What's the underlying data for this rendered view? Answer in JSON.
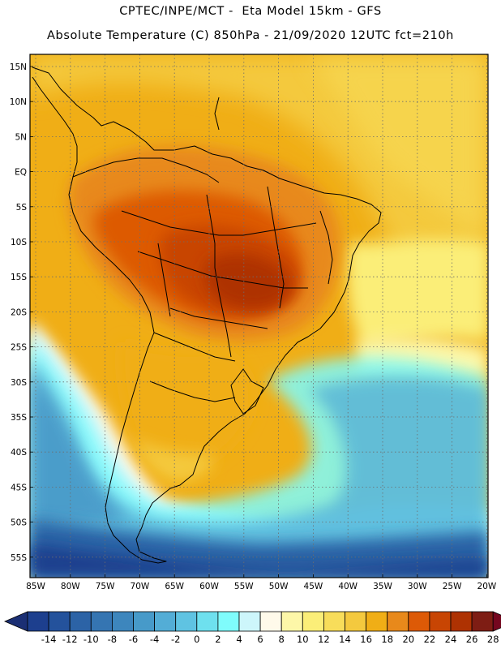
{
  "header": {
    "title_line1": "CPTEC/INPE/MCT -  Eta Model 15km - GFS",
    "title_line2": "Absolute Temperature (C) 850hPa - 21/09/2020 12UTC fct=210h"
  },
  "map": {
    "lat_labels": [
      "15N",
      "10N",
      "5N",
      "EQ",
      "5S",
      "10S",
      "15S",
      "20S",
      "25S",
      "30S",
      "35S",
      "40S",
      "45S",
      "50S",
      "55S"
    ],
    "lon_labels": [
      "85W",
      "80W",
      "75W",
      "70W",
      "65W",
      "60W",
      "55W",
      "50W",
      "45W",
      "40W",
      "35W",
      "30W",
      "25W",
      "20W"
    ]
  },
  "colorbar": {
    "labels": [
      "-14",
      "-12",
      "-10",
      "-8",
      "-6",
      "-4",
      "-2",
      "0",
      "2",
      "4",
      "6",
      "8",
      "10",
      "12",
      "14",
      "16",
      "18",
      "20",
      "22",
      "24",
      "26",
      "28"
    ],
    "colors": [
      "#1d3f8e",
      "#24529c",
      "#2c63a6",
      "#3575b2",
      "#3d86bd",
      "#479ac9",
      "#53add6",
      "#5fc3e2",
      "#6ee0ee",
      "#7ffcfc",
      "#cdf6fb",
      "#fffaea",
      "#fdf7a8",
      "#fbee78",
      "#f8dd5a",
      "#f4c93e",
      "#f0ae16",
      "#e8891b",
      "#dd5a06",
      "#c84503",
      "#ae3202",
      "#7e1d14"
    ],
    "under_color": "#1b2f74",
    "over_color": "#75071f"
  }
}
